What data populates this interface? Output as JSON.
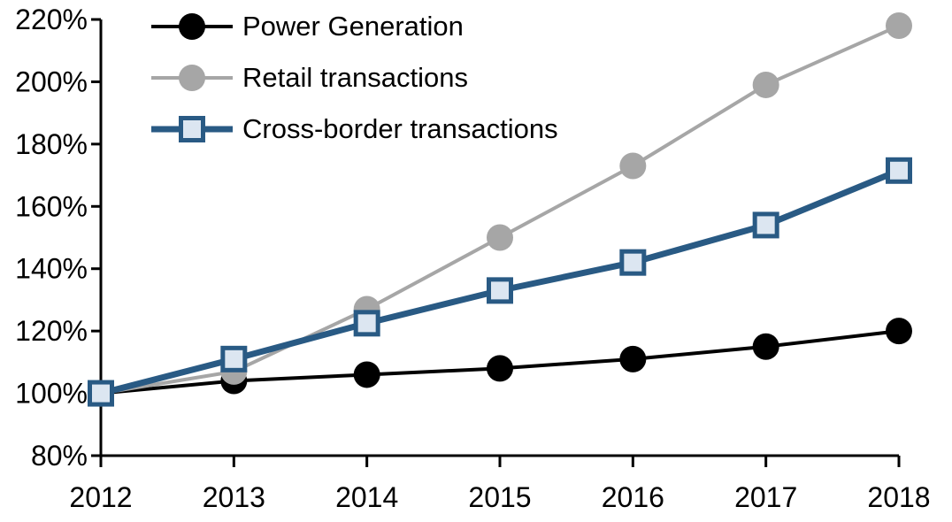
{
  "chart_data": {
    "type": "line",
    "title": "",
    "xlabel": "",
    "ylabel": "",
    "categories": [
      "2012",
      "2013",
      "2014",
      "2015",
      "2016",
      "2017",
      "2018"
    ],
    "series": [
      {
        "name": "Power Generation",
        "values": [
          100,
          104,
          106,
          108,
          111,
          115,
          120
        ],
        "color": "#000000",
        "marker": "circle",
        "marker_fill": "#000000",
        "line_width": 4
      },
      {
        "name": "Retail transactions",
        "values": [
          100,
          107,
          127,
          150,
          173,
          199,
          218
        ],
        "color": "#A6A6A6",
        "marker": "circle",
        "marker_fill": "#A6A6A6",
        "line_width": 4
      },
      {
        "name": "Cross-border transactions",
        "values": [
          100,
          111,
          122.5,
          133,
          142,
          154,
          171.5
        ],
        "color": "#295A84",
        "marker": "square",
        "marker_fill": "#DCE6F1",
        "line_width": 7
      }
    ],
    "ylim": [
      80,
      220
    ],
    "ytick_values": [
      80,
      100,
      120,
      140,
      160,
      180,
      200,
      220
    ],
    "ytick_labels": [
      "80%",
      "100%",
      "120%",
      "140%",
      "160%",
      "180%",
      "200%",
      "220%"
    ],
    "grid": false,
    "legend_position": "top-left",
    "axis_color": "#000000",
    "background_color": "#FFFFFF"
  }
}
